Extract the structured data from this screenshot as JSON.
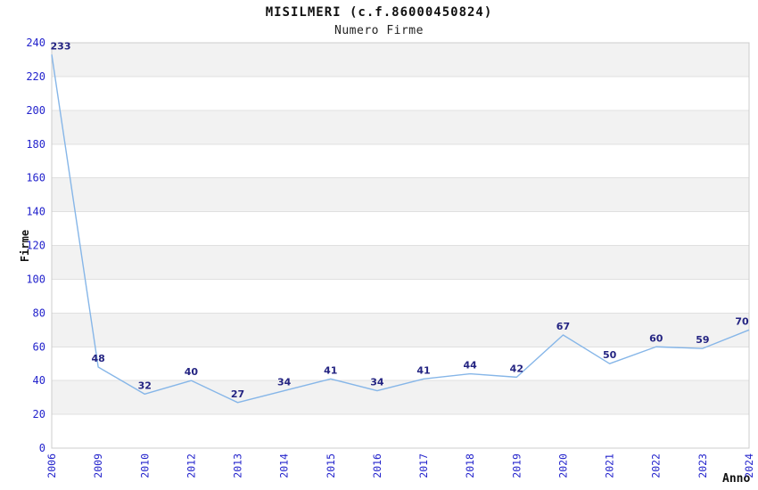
{
  "title": "MISILMERI (c.f.86000450824)",
  "subtitle": "Numero Firme",
  "colors": {
    "line": "#86b6e8",
    "tick_label": "#2323cc",
    "data_label": "#242482",
    "band_fill": "#f2f2f2",
    "gridline": "#e0e0e0",
    "plot_border": "#cccccc",
    "text": "#111111",
    "background": "#ffffff"
  },
  "chart_data": {
    "type": "line",
    "title": "MISILMERI (c.f.86000450824)",
    "subtitle": "Numero Firme",
    "xlabel": "Anno",
    "ylabel": "Firme",
    "x": [
      "2006",
      "2009",
      "2010",
      "2012",
      "2013",
      "2014",
      "2015",
      "2016",
      "2017",
      "2018",
      "2019",
      "2020",
      "2021",
      "2022",
      "2023",
      "2024"
    ],
    "series": [
      {
        "name": "Numero Firme",
        "values": [
          233,
          48,
          32,
          40,
          27,
          34,
          41,
          34,
          41,
          44,
          42,
          67,
          50,
          60,
          59,
          70
        ]
      }
    ],
    "ylim": [
      0,
      240
    ],
    "ytick_step": 20,
    "grid": "horizontal-bands-alternating",
    "legend": "none",
    "data_labels": true,
    "markers": "none"
  }
}
